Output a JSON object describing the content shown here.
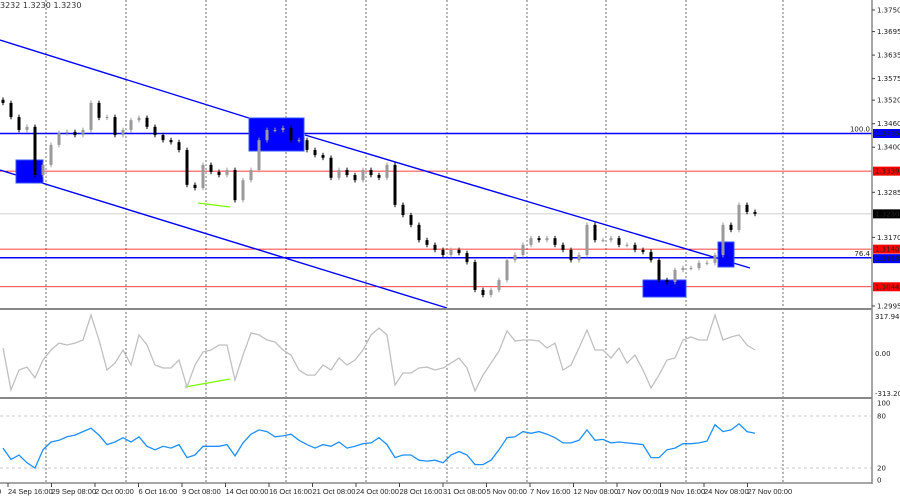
{
  "header": {
    "ohlc_text": "3232 1.3230 1.3230"
  },
  "colors": {
    "candle_down": "#000000",
    "candle_up": "#9a9a9a",
    "channel": "#0000ff",
    "support_resistance": "#ff0000",
    "current_price_line": "#c0c0c0",
    "cci_line": "#c0c0c0",
    "rsi_line": "#1e90ff",
    "divergence": "#7cfc00",
    "zone_box": "#0000ff"
  },
  "chart_data": [
    {
      "type": "candlestick",
      "panel": "price",
      "ylim": [
        1.2995,
        1.375
      ],
      "y_ticks": [
        "1.3750",
        "1.3695",
        "1.3635",
        "1.3575",
        "1.3520",
        "1.3460",
        "1.3400",
        "1.3285",
        "1.3170",
        "1.2995"
      ],
      "closes": [
        1.3513,
        1.3477,
        1.3444,
        1.3452,
        1.3329,
        1.3355,
        1.3406,
        1.3436,
        1.3439,
        1.3431,
        1.3444,
        1.3513,
        1.3475,
        1.3477,
        1.3431,
        1.3444,
        1.3469,
        1.3475,
        1.3452,
        1.3431,
        1.3418,
        1.3413,
        1.3393,
        1.3304,
        1.3296,
        1.3355,
        1.3337,
        1.3329,
        1.3342,
        1.3265,
        1.3316,
        1.3342,
        1.3418,
        1.3444,
        1.3444,
        1.3449,
        1.3418,
        1.3418,
        1.3393,
        1.338,
        1.3373,
        1.3322,
        1.3342,
        1.3329,
        1.3316,
        1.3342,
        1.3329,
        1.3322,
        1.3355,
        1.3253,
        1.3227,
        1.3202,
        1.3163,
        1.3151,
        1.3138,
        1.3125,
        1.3138,
        1.313,
        1.3107,
        1.3036,
        1.3023,
        1.3036,
        1.3061,
        1.3112,
        1.3125,
        1.3151,
        1.3168,
        1.3163,
        1.3168,
        1.3151,
        1.3138,
        1.3112,
        1.3125,
        1.3202,
        1.3163,
        1.3163,
        1.3168,
        1.3151,
        1.3151,
        1.3138,
        1.3133,
        1.3112,
        1.3061,
        1.3056,
        1.3087,
        1.3092,
        1.3092,
        1.3105,
        1.3105,
        1.3125,
        1.3202,
        1.3189,
        1.3253,
        1.3235,
        1.323
      ],
      "levels": [
        {
          "price": 1.3435,
          "label": "1.3435",
          "kind": "fibo",
          "fibo_label": "100.0",
          "color": "#0000ff"
        },
        {
          "price": 1.3339,
          "label": "1.3339",
          "kind": "resistance",
          "color": "#ff0000"
        },
        {
          "price": 1.323,
          "label": "1.3230",
          "kind": "current",
          "color": "#000000"
        },
        {
          "price": 1.314,
          "label": "1.3140",
          "kind": "support",
          "color": "#ff0000"
        },
        {
          "price": 1.3118,
          "label": "1.3118",
          "kind": "fibo",
          "fibo_label": "76.4",
          "color": "#0000ff"
        },
        {
          "price": 1.3044,
          "label": "1.3044",
          "kind": "support",
          "color": "#ff0000"
        }
      ],
      "x_labels": [
        "24 Sep 16:00",
        "29 Sep 08:00",
        "2 Oct 00:00",
        "6 Oct 16:00",
        "9 Oct 08:00",
        "14 Oct 00:00",
        "16 Oct 16:00",
        "21 Oct 08:00",
        "24 Oct 00:00",
        "28 Oct 16:00",
        "31 Oct 08:00",
        "5 Nov 00:00",
        "7 Nov 16:00",
        "12 Nov 08:00",
        "17 Nov 00:00",
        "19 Nov 16:00",
        "24 Nov 08:00",
        "27 Nov 00:00"
      ],
      "x_label_left_cut": "0",
      "grid": true
    },
    {
      "type": "line",
      "panel": "cci",
      "ylim": [
        -313.204,
        317.9471
      ],
      "y_ticks": [
        "317.9471",
        "0.00",
        "-313.204"
      ],
      "values": [
        42,
        -262,
        -117,
        -96,
        -175,
        -45,
        28,
        78,
        64,
        78,
        100,
        282,
        100,
        -117,
        -67,
        28,
        -81,
        137,
        64,
        -81,
        -103,
        -103,
        -45,
        -241,
        -81,
        13,
        28,
        64,
        64,
        -190,
        -9,
        151,
        137,
        100,
        86,
        28,
        -9,
        -117,
        -154,
        -154,
        -81,
        -117,
        -30,
        -81,
        -45,
        28,
        137,
        187,
        137,
        -226,
        -139,
        -139,
        -103,
        -96,
        -117,
        -103,
        -67,
        -30,
        -103,
        -270,
        -154,
        -67,
        20,
        166,
        93,
        100,
        100,
        93,
        42,
        78,
        -117,
        -81,
        42,
        173,
        28,
        28,
        -30,
        42,
        -67,
        -9,
        -117,
        -248,
        -154,
        -45,
        -30,
        100,
        122,
        100,
        100,
        282,
        100,
        122,
        137,
        64,
        28
      ]
    },
    {
      "type": "line",
      "panel": "rsi",
      "ylim": [
        0,
        100
      ],
      "y_ticks": [
        "100",
        "80",
        "20",
        "0"
      ],
      "values": [
        43,
        30,
        35,
        26,
        20,
        41,
        50,
        52,
        56,
        58,
        62,
        66,
        58,
        47,
        50,
        55,
        50,
        56,
        45,
        41,
        45,
        43,
        47,
        32,
        35,
        45,
        45,
        45,
        47,
        34,
        49,
        59,
        64,
        62,
        56,
        57,
        59,
        52,
        47,
        43,
        47,
        45,
        50,
        43,
        45,
        48,
        49,
        55,
        47,
        32,
        35,
        35,
        29,
        28,
        29,
        26,
        35,
        39,
        35,
        24,
        24,
        29,
        41,
        55,
        56,
        62,
        60,
        62,
        59,
        55,
        49,
        49,
        52,
        64,
        52,
        53,
        49,
        50,
        49,
        48,
        47,
        32,
        32,
        41,
        43,
        48,
        48,
        49,
        51,
        70,
        62,
        64,
        71,
        62,
        60
      ]
    }
  ]
}
